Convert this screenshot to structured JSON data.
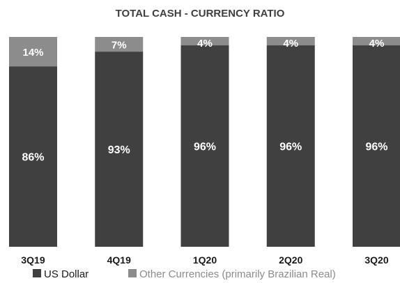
{
  "chart_data": {
    "type": "bar",
    "stacked": true,
    "percent_stacked": true,
    "title": "TOTAL CASH - CURRENCY RATIO",
    "categories": [
      "3Q19",
      "4Q19",
      "1Q20",
      "2Q20",
      "3Q20"
    ],
    "series": [
      {
        "name": "US Dollar",
        "values": [
          86,
          93,
          96,
          96,
          96
        ],
        "labels": [
          "86%",
          "93%",
          "96%",
          "96%",
          "96%"
        ],
        "color": "#404040"
      },
      {
        "name": "Other Currencies (primarily Brazilian Real)",
        "values": [
          14,
          7,
          4,
          4,
          4
        ],
        "labels": [
          "14%",
          "7%",
          "4%",
          "4%",
          "4%"
        ],
        "color": "#8c8c8c"
      }
    ],
    "ylim": [
      0,
      100
    ],
    "grid": false,
    "legend_position": "bottom"
  },
  "colors": {
    "dollar_text": "#1a1a1a",
    "other_text": "#8c8c8c"
  }
}
